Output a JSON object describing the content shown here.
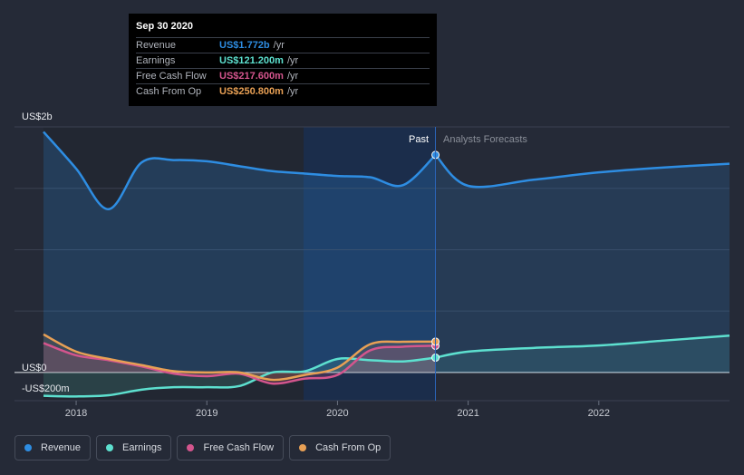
{
  "tooltip": {
    "date": "Sep 30 2020",
    "rows": [
      {
        "label": "Revenue",
        "value": "US$1.772b",
        "unit": "/yr",
        "color": "#2e8de2"
      },
      {
        "label": "Earnings",
        "value": "US$121.200m",
        "unit": "/yr",
        "color": "#5de0cf"
      },
      {
        "label": "Free Cash Flow",
        "value": "US$217.600m",
        "unit": "/yr",
        "color": "#d4558d"
      },
      {
        "label": "Cash From Op",
        "value": "US$250.800m",
        "unit": "/yr",
        "color": "#e8a055"
      }
    ]
  },
  "y_labels": {
    "top": "US$2b",
    "zero": "US$0",
    "neg": "-US$200m"
  },
  "regions": {
    "past": "Past",
    "forecast": "Analysts Forecasts"
  },
  "legend": [
    {
      "label": "Revenue",
      "color": "#2e8de2"
    },
    {
      "label": "Earnings",
      "color": "#5de0cf"
    },
    {
      "label": "Free Cash Flow",
      "color": "#d4558d"
    },
    {
      "label": "Cash From Op",
      "color": "#e8a055"
    }
  ],
  "chart_data": {
    "type": "line",
    "x_ticks": [
      "2018",
      "2019",
      "2020",
      "2021",
      "2022"
    ],
    "ylim": [
      -200,
      2000
    ],
    "y_unit": "US$m",
    "series": [
      {
        "name": "Revenue",
        "color": "#2e8de2",
        "past_x": [
          2017.75,
          2018.0,
          2018.25,
          2018.5,
          2018.75,
          2019.0,
          2019.25,
          2019.5,
          2019.75,
          2020.0,
          2020.25,
          2020.5,
          2020.75
        ],
        "past_y": [
          1960,
          1660,
          1330,
          1710,
          1730,
          1720,
          1680,
          1640,
          1620,
          1600,
          1590,
          1525,
          1772
        ],
        "forecast_x": [
          2020.75,
          2021.0,
          2021.5,
          2022.0,
          2022.5,
          2023.0
        ],
        "forecast_y": [
          1772,
          1520,
          1570,
          1630,
          1670,
          1700
        ]
      },
      {
        "name": "Earnings",
        "color": "#5de0cf",
        "past_x": [
          2017.75,
          2018.0,
          2018.25,
          2018.5,
          2018.75,
          2019.0,
          2019.25,
          2019.5,
          2019.75,
          2020.0,
          2020.25,
          2020.5,
          2020.75
        ],
        "past_y": [
          -190,
          -195,
          -185,
          -140,
          -120,
          -120,
          -110,
          0,
          10,
          110,
          100,
          90,
          121
        ],
        "forecast_x": [
          2020.75,
          2021.0,
          2021.5,
          2022.0,
          2022.5,
          2023.0
        ],
        "forecast_y": [
          121,
          170,
          200,
          220,
          260,
          300
        ]
      },
      {
        "name": "Free Cash Flow",
        "color": "#d4558d",
        "past_x": [
          2017.75,
          2018.0,
          2018.25,
          2018.5,
          2018.75,
          2019.0,
          2019.25,
          2019.5,
          2019.75,
          2020.0,
          2020.25,
          2020.5,
          2020.75
        ],
        "past_y": [
          240,
          140,
          100,
          50,
          -10,
          -30,
          -10,
          -90,
          -50,
          -20,
          180,
          210,
          217.6
        ]
      },
      {
        "name": "Cash From Op",
        "color": "#e8a055",
        "past_x": [
          2017.75,
          2018.0,
          2018.25,
          2018.5,
          2018.75,
          2019.0,
          2019.25,
          2019.5,
          2019.75,
          2020.0,
          2020.25,
          2020.5,
          2020.75
        ],
        "past_y": [
          310,
          170,
          110,
          60,
          10,
          0,
          0,
          -60,
          -20,
          40,
          230,
          250,
          250.8
        ]
      }
    ]
  }
}
